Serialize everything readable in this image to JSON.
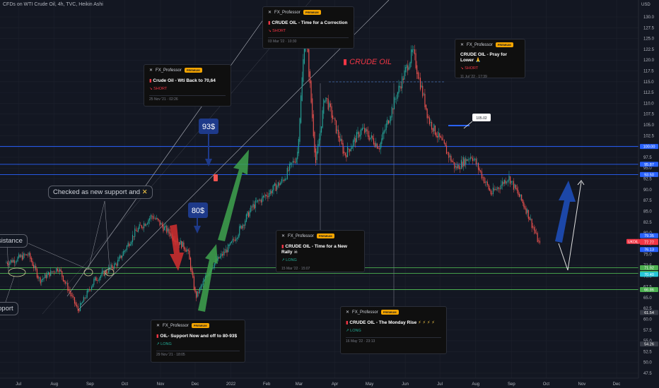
{
  "header": {
    "title": "CFDs on WTI Crude Oil, 4h, TVC, Heikin Ashi",
    "currency": "USD"
  },
  "colors": {
    "background": "#131722",
    "up": "#26a69a",
    "down": "#ef5350",
    "blue_line": "#2962ff",
    "green_line": "#4caf50",
    "arrow_green": "#3fa34d",
    "arrow_red": "#d32f2f",
    "arrow_blue": "#1e4db7"
  },
  "chart_data": {
    "type": "candlestick",
    "title": "CFDs on WTI Crude Oil, 4h, TVC, Heikin Ashi",
    "ylim": [
      45,
      130
    ],
    "ylabel": "USD",
    "y_ticks": [
      47.5,
      50,
      52.5,
      55,
      57.5,
      60,
      62.5,
      65,
      67.5,
      70,
      72.5,
      75,
      77.5,
      80,
      82.5,
      85,
      87.5,
      90,
      92.5,
      95,
      97.5,
      100,
      102.5,
      105,
      107.5,
      110,
      112.5,
      115,
      117.5,
      120,
      122.5,
      125,
      127.5,
      130
    ],
    "x_ticks": [
      "Jul",
      "Aug",
      "Sep",
      "Oct",
      "Nov",
      "Dec",
      "2022",
      "Feb",
      "Mar",
      "Apr",
      "May",
      "Jun",
      "Jul",
      "Aug",
      "Sep",
      "Oct",
      "Nov",
      "Dec"
    ],
    "price_path": [
      [
        "2021-06-20",
        73
      ],
      [
        "2021-07-10",
        75
      ],
      [
        "2021-07-20",
        69
      ],
      [
        "2021-08-05",
        72
      ],
      [
        "2021-08-22",
        62
      ],
      [
        "2021-09-05",
        69
      ],
      [
        "2021-09-25",
        73
      ],
      [
        "2021-10-10",
        80
      ],
      [
        "2021-10-25",
        84
      ],
      [
        "2021-11-05",
        81
      ],
      [
        "2021-11-25",
        76
      ],
      [
        "2021-12-02",
        65
      ],
      [
        "2021-12-15",
        72
      ],
      [
        "2022-01-01",
        77
      ],
      [
        "2022-01-20",
        86
      ],
      [
        "2022-02-15",
        92
      ],
      [
        "2022-02-28",
        98
      ],
      [
        "2022-03-07",
        128
      ],
      [
        "2022-03-16",
        96
      ],
      [
        "2022-03-24",
        112
      ],
      [
        "2022-04-10",
        98
      ],
      [
        "2022-04-25",
        104
      ],
      [
        "2022-05-10",
        100
      ],
      [
        "2022-05-25",
        112
      ],
      [
        "2022-06-08",
        122
      ],
      [
        "2022-06-22",
        106
      ],
      [
        "2022-07-05",
        100
      ],
      [
        "2022-07-15",
        95
      ],
      [
        "2022-07-29",
        98
      ],
      [
        "2022-08-15",
        89
      ],
      [
        "2022-08-30",
        93
      ],
      [
        "2022-09-15",
        85
      ],
      [
        "2022-09-26",
        77
      ]
    ],
    "horizontal_levels": [
      {
        "label": "100.00",
        "value": 100.0,
        "color": "blue"
      },
      {
        "label": "95.87",
        "value": 95.87,
        "color": "blue"
      },
      {
        "label": "93.50",
        "value": 93.5,
        "color": "blue"
      },
      {
        "label": "71.92",
        "value": 71.92,
        "color": "green"
      },
      {
        "label": "70.61",
        "value": 70.61,
        "color": "green"
      },
      {
        "label": "66.86",
        "value": 66.86,
        "color": "green"
      }
    ],
    "price_tags": [
      {
        "label": "100.00",
        "value": 100.0,
        "color": "#2962ff"
      },
      {
        "label": "95.87",
        "value": 95.87,
        "color": "#2962ff"
      },
      {
        "label": "93.50",
        "value": 93.5,
        "color": "#2962ff"
      },
      {
        "label": "79.35",
        "value": 79.35,
        "color": "#2962ff"
      },
      {
        "label": "78.08",
        "value": 78.08,
        "color": "#f23645"
      },
      {
        "label": "78.01",
        "value": 78.01,
        "color": "#f23645"
      },
      {
        "label": "77.77",
        "value": 77.77,
        "color": "#f23645"
      },
      {
        "label": "76.13",
        "value": 76.13,
        "color": "#2962ff"
      },
      {
        "label": "71.92",
        "value": 71.92,
        "color": "#4caf50"
      },
      {
        "label": "70.61",
        "value": 70.61,
        "color": "#4caf50"
      },
      {
        "label": "70.40",
        "value": 70.4,
        "color": "#26c6da"
      },
      {
        "label": "66.86",
        "value": 66.86,
        "color": "#4caf50"
      },
      {
        "label": "61.54",
        "value": 61.54,
        "color": "#363a45"
      },
      {
        "label": "54.26",
        "value": 54.26,
        "color": "#363a45"
      }
    ],
    "symbol_tag": {
      "label": "UKOIL",
      "value": 78.0
    },
    "annotations": [
      {
        "text": "93$",
        "type": "price-label"
      },
      {
        "text": "80$",
        "type": "price-label"
      },
      {
        "text": "105.02",
        "type": "price-label"
      }
    ]
  },
  "callouts": {
    "support_check": "Checked as new support and",
    "resistance": "sistance",
    "support": "pport"
  },
  "watermark": "CRUDE OIL",
  "ideas": [
    {
      "author": "FX_Professor",
      "badge": "PREMIUM",
      "title": "CRUDE OIL - Time for a Correction",
      "direction": "SHORT",
      "date": "03 Mar '22 · 10:30"
    },
    {
      "author": "FX_Professor",
      "badge": "PREMIUM",
      "title": "Crude Oil - Wti Back to 70,64",
      "direction": "SHORT",
      "date": "25 Nov '21 · 02:26"
    },
    {
      "author": "FX_Professor",
      "badge": "PREMIUM",
      "title": "CRUDE OIL - Pray for Lower",
      "direction": "SHORT",
      "date": "11 Jul '22 · 17:39"
    },
    {
      "author": "FX_Professor",
      "badge": "PREMIUM",
      "title": "CRUDE OIL - Time for a New Rally",
      "direction": "LONG",
      "date": "15 Mar '22 · 15:07"
    },
    {
      "author": "FX_Professor",
      "badge": "PREMIUM",
      "title": "CRUDE OIL - The Monday Rise",
      "direction": "LONG",
      "date": "16 May '22 · 23:13"
    },
    {
      "author": "FX_Professor",
      "badge": "PREMIUM",
      "title": "OIL- Support Now and off to 80-93$",
      "direction": "LONG",
      "date": "29 Nov '21 · 18:05"
    }
  ]
}
